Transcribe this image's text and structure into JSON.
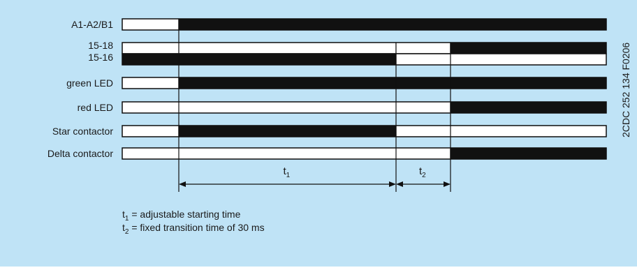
{
  "colors": {
    "panel_background": "#bfe3f6",
    "bar_on": "#111111",
    "bar_off": "#ffffff",
    "outline": "#111111",
    "text": "#1a1a1a"
  },
  "diagram": {
    "time_marks": [
      "start",
      "t1_end",
      "t2_end",
      "end"
    ],
    "rows": [
      {
        "label": "A1-A2/B1",
        "kind": "single",
        "segments": [
          {
            "from": "start",
            "to": "t0",
            "on": false
          },
          {
            "from": "t0",
            "to": "end",
            "on": true
          }
        ]
      },
      {
        "label": "15-18",
        "kind": "upper",
        "segments": [
          {
            "from": "start",
            "to": "t1_end",
            "on": false
          },
          {
            "from": "t1_end",
            "to": "t2_end",
            "on": false
          },
          {
            "from": "t2_end",
            "to": "end",
            "on": true
          }
        ]
      },
      {
        "label": "15-16",
        "kind": "lower",
        "segments": [
          {
            "from": "start",
            "to": "t1_end",
            "on": true
          },
          {
            "from": "t1_end",
            "to": "end",
            "on": false
          }
        ]
      },
      {
        "label": "green LED",
        "kind": "single",
        "segments": [
          {
            "from": "start",
            "to": "t0",
            "on": false
          },
          {
            "from": "t0",
            "to": "end",
            "on": true
          }
        ]
      },
      {
        "label": "red LED",
        "kind": "single",
        "segments": [
          {
            "from": "start",
            "to": "t2_end",
            "on": false
          },
          {
            "from": "t2_end",
            "to": "end",
            "on": true
          }
        ]
      },
      {
        "label": "Star contactor",
        "kind": "single",
        "segments": [
          {
            "from": "start",
            "to": "t0",
            "on": false
          },
          {
            "from": "t0",
            "to": "t1_end",
            "on": true
          },
          {
            "from": "t1_end",
            "to": "end",
            "on": false
          }
        ]
      },
      {
        "label": "Delta contactor",
        "kind": "single",
        "segments": [
          {
            "from": "start",
            "to": "t2_end",
            "on": false
          },
          {
            "from": "t2_end",
            "to": "end",
            "on": true
          }
        ]
      }
    ],
    "intervals": [
      {
        "symbol": "t",
        "sub": "1",
        "from": "t0",
        "to": "t1_end"
      },
      {
        "symbol": "t",
        "sub": "2",
        "from": "t1_end",
        "to": "t2_end"
      }
    ],
    "legend": [
      {
        "symbol": "t",
        "sub": "1",
        "text": " = adjustable starting time"
      },
      {
        "symbol": "t",
        "sub": "2",
        "text": " = fixed transition time of 30 ms"
      }
    ],
    "doc_code": "2CDC 252 134 F0206"
  }
}
